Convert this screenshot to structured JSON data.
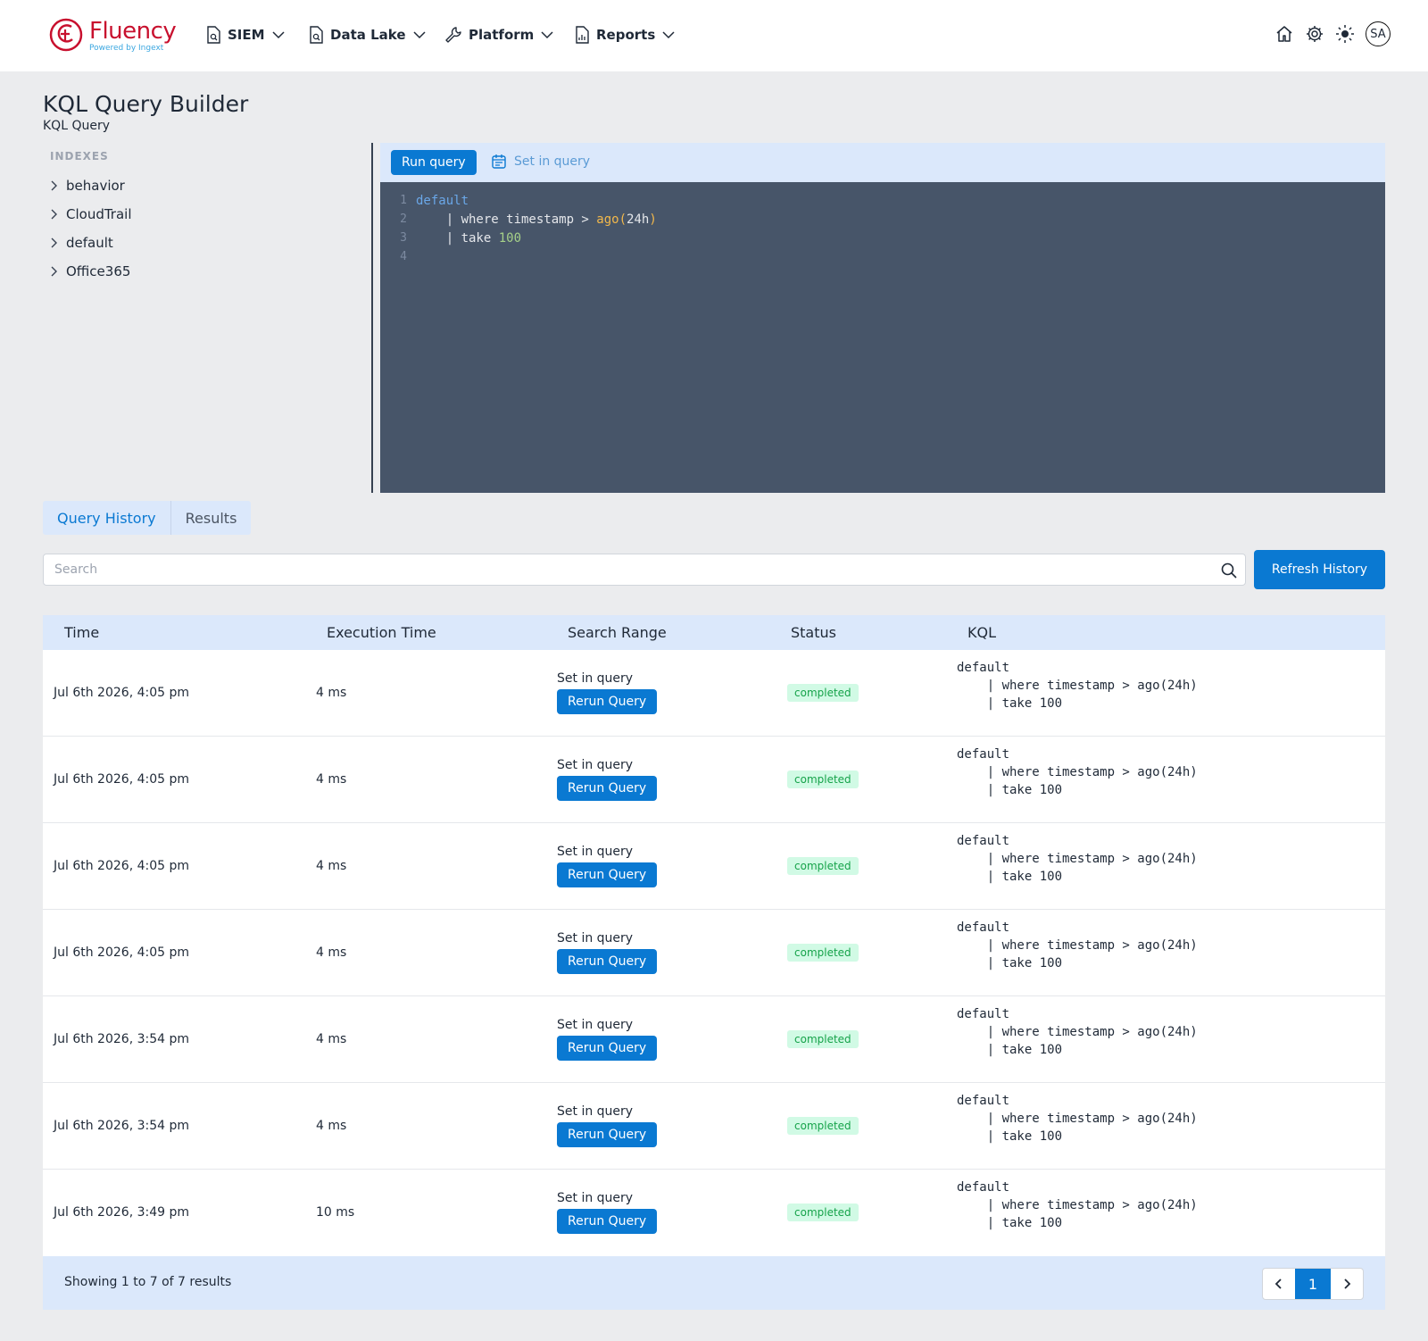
{
  "brand": {
    "name": "Fluency",
    "tagline": "Powered by Ingext",
    "color": "#c8102e"
  },
  "nav": [
    {
      "label": "SIEM",
      "icon": "file-search-icon"
    },
    {
      "label": "Data Lake",
      "icon": "file-search-icon"
    },
    {
      "label": "Platform",
      "icon": "wrench-icon"
    },
    {
      "label": "Reports",
      "icon": "file-chart-icon"
    }
  ],
  "user": {
    "initials": "SA"
  },
  "page": {
    "title": "KQL Query Builder",
    "subtitle": "KQL Query"
  },
  "sidebar": {
    "heading": "INDEXES",
    "indexes": [
      "behavior",
      "CloudTrail",
      "default",
      "Office365"
    ]
  },
  "editor": {
    "run_label": "Run query",
    "range_label": "Set in query",
    "line_numbers": [
      "1",
      "2",
      "3",
      "4"
    ],
    "code": {
      "l1": "default",
      "l2_a": "    | where timestamp > ",
      "l2_fn": "ago",
      "l2_open": "(",
      "l2_arg": "24h",
      "l2_close": ")",
      "l3_a": "    | take ",
      "l3_num": "100"
    }
  },
  "tabs": {
    "history": "Query History",
    "results": "Results"
  },
  "search": {
    "placeholder": "Search",
    "value": ""
  },
  "refresh_label": "Refresh History",
  "table": {
    "columns": {
      "time": "Time",
      "exec": "Execution Time",
      "range": "Search Range",
      "status": "Status",
      "kql": "KQL"
    },
    "rerun_label": "Rerun Query",
    "rows": [
      {
        "time": "Jul 6th 2026, 4:05 pm",
        "exec": "4 ms",
        "range": "Set in query",
        "status": "completed",
        "kql": "default\n    | where timestamp > ago(24h)\n    | take 100"
      },
      {
        "time": "Jul 6th 2026, 4:05 pm",
        "exec": "4 ms",
        "range": "Set in query",
        "status": "completed",
        "kql": "default\n    | where timestamp > ago(24h)\n    | take 100"
      },
      {
        "time": "Jul 6th 2026, 4:05 pm",
        "exec": "4 ms",
        "range": "Set in query",
        "status": "completed",
        "kql": "default\n    | where timestamp > ago(24h)\n    | take 100"
      },
      {
        "time": "Jul 6th 2026, 4:05 pm",
        "exec": "4 ms",
        "range": "Set in query",
        "status": "completed",
        "kql": "default\n    | where timestamp > ago(24h)\n    | take 100"
      },
      {
        "time": "Jul 6th 2026, 3:54 pm",
        "exec": "4 ms",
        "range": "Set in query",
        "status": "completed",
        "kql": "default\n    | where timestamp > ago(24h)\n    | take 100"
      },
      {
        "time": "Jul 6th 2026, 3:54 pm",
        "exec": "4 ms",
        "range": "Set in query",
        "status": "completed",
        "kql": "default\n    | where timestamp > ago(24h)\n    | take 100"
      },
      {
        "time": "Jul 6th 2026, 3:49 pm",
        "exec": "10 ms",
        "range": "Set in query",
        "status": "completed",
        "kql": "default\n    | where timestamp > ago(24h)\n    | take 100"
      }
    ]
  },
  "footer": {
    "summary": "Showing 1 to 7 of 7 results",
    "current_page": "1"
  },
  "colors": {
    "accent": "#0a79d2",
    "editor_bg": "#475569",
    "panel": "#dbe8fb",
    "success_bg": "#d1fae5",
    "success_text": "#16a34a"
  }
}
